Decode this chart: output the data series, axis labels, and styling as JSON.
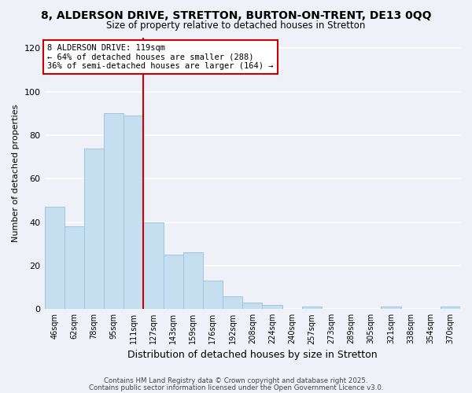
{
  "title": "8, ALDERSON DRIVE, STRETTON, BURTON-ON-TRENT, DE13 0QQ",
  "subtitle": "Size of property relative to detached houses in Stretton",
  "xlabel": "Distribution of detached houses by size in Stretton",
  "ylabel": "Number of detached properties",
  "bar_color": "#c5dff0",
  "bar_edge_color": "#a0c4de",
  "categories": [
    "46sqm",
    "62sqm",
    "78sqm",
    "95sqm",
    "111sqm",
    "127sqm",
    "143sqm",
    "159sqm",
    "176sqm",
    "192sqm",
    "208sqm",
    "224sqm",
    "240sqm",
    "257sqm",
    "273sqm",
    "289sqm",
    "305sqm",
    "321sqm",
    "338sqm",
    "354sqm",
    "370sqm"
  ],
  "values": [
    47,
    38,
    74,
    90,
    89,
    40,
    25,
    26,
    13,
    6,
    3,
    2,
    0,
    1,
    0,
    0,
    0,
    1,
    0,
    0,
    1
  ],
  "ylim": [
    0,
    125
  ],
  "yticks": [
    0,
    20,
    40,
    60,
    80,
    100,
    120
  ],
  "vline_color": "#cc0000",
  "annotation_text": "8 ALDERSON DRIVE: 119sqm\n← 64% of detached houses are smaller (288)\n36% of semi-detached houses are larger (164) →",
  "annotation_box_color": "#ffffff",
  "annotation_box_edge": "#cc0000",
  "footer1": "Contains HM Land Registry data © Crown copyright and database right 2025.",
  "footer2": "Contains public sector information licensed under the Open Government Licence v3.0.",
  "background_color": "#eef2f8",
  "grid_color": "#ffffff"
}
